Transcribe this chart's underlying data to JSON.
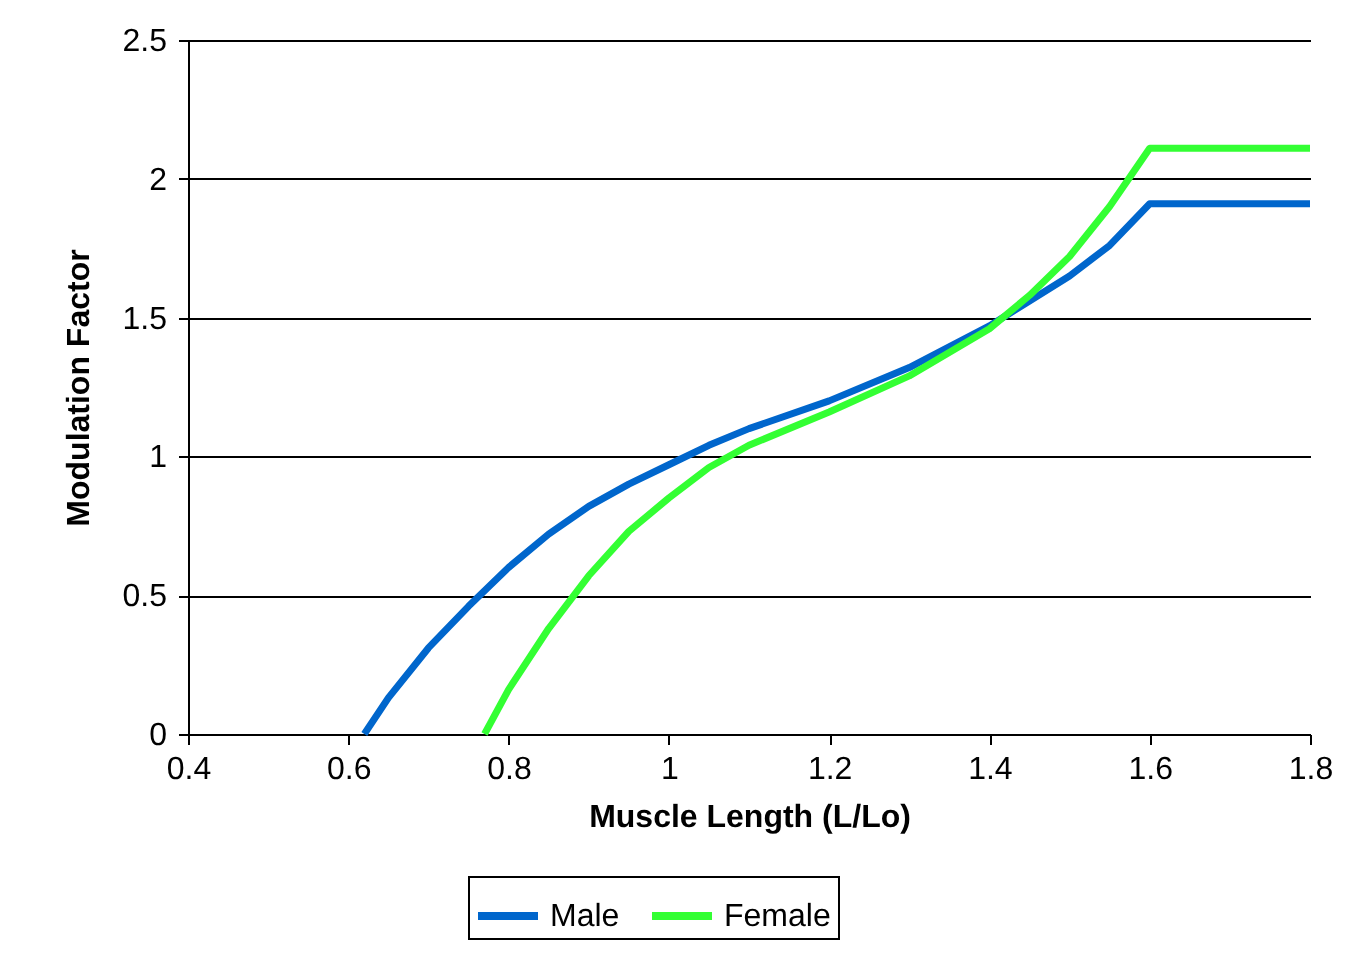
{
  "chart_data": {
    "type": "line",
    "xlabel": "Muscle Length (L/Lo)",
    "ylabel": "Modulation Factor",
    "xlim": [
      0.4,
      1.8
    ],
    "xticks": [
      0.4,
      0.6,
      0.8,
      1,
      1.2,
      1.4,
      1.6,
      1.8
    ],
    "ylim": [
      0,
      2.5
    ],
    "yticks": [
      0,
      0.5,
      1,
      1.5,
      2,
      2.5
    ],
    "grid": "y",
    "legend": "bottom",
    "marker": "none",
    "line_style": "solid",
    "series": [
      {
        "name": "Male",
        "color": "#0066cc",
        "x": [
          0.62,
          0.65,
          0.7,
          0.75,
          0.8,
          0.85,
          0.9,
          0.95,
          1.0,
          1.05,
          1.1,
          1.2,
          1.3,
          1.4,
          1.45,
          1.5,
          1.55,
          1.6,
          1.8
        ],
        "values": [
          0,
          0.13,
          0.31,
          0.46,
          0.6,
          0.72,
          0.82,
          0.9,
          0.97,
          1.04,
          1.1,
          1.2,
          1.32,
          1.47,
          1.56,
          1.65,
          1.76,
          1.91,
          1.91
        ]
      },
      {
        "name": "Female",
        "color": "#33ff33",
        "x": [
          0.77,
          0.8,
          0.85,
          0.9,
          0.95,
          1.0,
          1.05,
          1.1,
          1.2,
          1.3,
          1.4,
          1.45,
          1.5,
          1.55,
          1.6,
          1.8
        ],
        "values": [
          0,
          0.16,
          0.38,
          0.57,
          0.73,
          0.85,
          0.96,
          1.04,
          1.16,
          1.29,
          1.46,
          1.58,
          1.72,
          1.9,
          2.11,
          2.11
        ]
      }
    ]
  }
}
